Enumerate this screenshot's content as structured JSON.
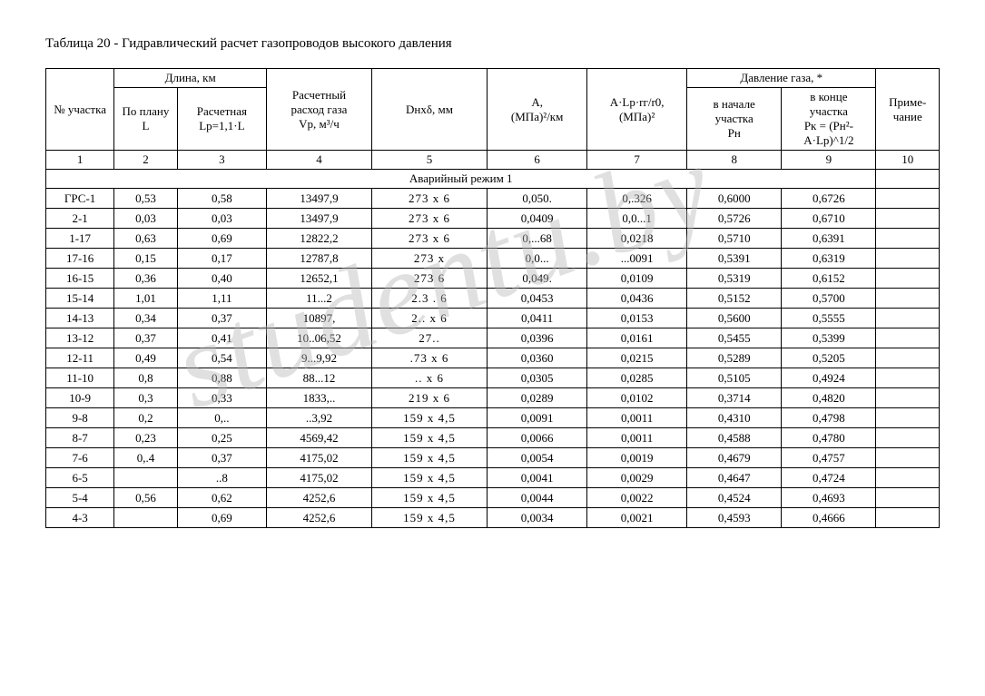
{
  "title": "Таблица 20 - Гидравлический расчет газопроводов высокого давления",
  "watermark_text": "studentu.by",
  "headers": {
    "col1": "№ участка",
    "length_group": "Длина, км",
    "col2": "По плану L",
    "col3_line1": "Расчетная",
    "col3_line2": "Lр=1,1·L",
    "col4_line1": "Расчетный",
    "col4_line2": "расход газа",
    "col4_line3": "Vр, м³/ч",
    "col5": "Dнхδ, мм",
    "col6_line1": "A,",
    "col6_line2": "(МПа)²/км",
    "col7_line1": "A·Lр·rг/r0,",
    "col7_line2": "(МПа)²",
    "pressure_group": "Давление газа, *",
    "col8_line1": "в начале",
    "col8_line2": "участка",
    "col8_line3": "Рн",
    "col9_line1": "в конце",
    "col9_line2": "участка",
    "col9_line3": "Рк = (Рн²-",
    "col9_line4": "A·Lр)^1/2",
    "col10": "Приме-чание"
  },
  "col_numbers": [
    "1",
    "2",
    "3",
    "4",
    "5",
    "6",
    "7",
    "8",
    "9",
    "10"
  ],
  "section_label": "Аварийный режим 1",
  "rows": [
    {
      "c1": "ГРС-1",
      "c2": "0,53",
      "c3": "0,58",
      "c4": "13497,9",
      "c5": "273   х   6",
      "c6": "0,050.",
      "c7": "0,.326",
      "c8": "0,6000",
      "c9": "0,6726",
      "c10": ""
    },
    {
      "c1": "2-1",
      "c2": "0,03",
      "c3": "0,03",
      "c4": "13497,9",
      "c5": "273   х   6",
      "c6": "0,0409",
      "c7": "0,0...1",
      "c8": "0,5726",
      "c9": "0,6710",
      "c10": ""
    },
    {
      "c1": "1-17",
      "c2": "0,63",
      "c3": "0,69",
      "c4": "12822,2",
      "c5": "273   х   6",
      "c6": "0,...68",
      "c7": "0,0218",
      "c8": "0,5710",
      "c9": "0,6391",
      "c10": ""
    },
    {
      "c1": "17-16",
      "c2": "0,15",
      "c3": "0,17",
      "c4": "12787,8",
      "c5": "273   х",
      "c6": "0,0...",
      "c7": "...0091",
      "c8": "0,5391",
      "c9": "0,6319",
      "c10": ""
    },
    {
      "c1": "16-15",
      "c2": "0,36",
      "c3": "0,40",
      "c4": "12652,1",
      "c5": "273       6",
      "c6": "0,049.",
      "c7": "0,0109",
      "c8": "0,5319",
      "c9": "0,6152",
      "c10": ""
    },
    {
      "c1": "15-14",
      "c2": "1,01",
      "c3": "1,11",
      "c4": "11...2",
      "c5": "2.3   .   6",
      "c6": "0,0453",
      "c7": "0,0436",
      "c8": "0,5152",
      "c9": "0,5700",
      "c10": ""
    },
    {
      "c1": "14-13",
      "c2": "0,34",
      "c3": "0,37",
      "c4": "10897,",
      "c5": "2..   х   6",
      "c6": "0,0411",
      "c7": "0,0153",
      "c8": "0,5600",
      "c9": "0,5555",
      "c10": ""
    },
    {
      "c1": "13-12",
      "c2": "0,37",
      "c3": "0,41",
      "c4": "10..06,52",
      "c5": "27..",
      "c6": "0,0396",
      "c7": "0,0161",
      "c8": "0,5455",
      "c9": "0,5399",
      "c10": ""
    },
    {
      "c1": "12-11",
      "c2": "0,49",
      "c3": "0,54",
      "c4": "9...9,92",
      "c5": ".73   х   6",
      "c6": "0,0360",
      "c7": "0,0215",
      "c8": "0,5289",
      "c9": "0,5205",
      "c10": ""
    },
    {
      "c1": "11-10",
      "c2": "0,8",
      "c3": "0,88",
      "c4": "88...12",
      "c5": "..   х   6",
      "c6": "0,0305",
      "c7": "0,0285",
      "c8": "0,5105",
      "c9": "0,4924",
      "c10": ""
    },
    {
      "c1": "10-9",
      "c2": "0,3",
      "c3": "0,33",
      "c4": "1833,..",
      "c5": "219   х   6",
      "c6": "0,0289",
      "c7": "0,0102",
      "c8": "0,3714",
      "c9": "0,4820",
      "c10": ""
    },
    {
      "c1": "9-8",
      "c2": "0,2",
      "c3": "0,..",
      "c4": "..3,92",
      "c5": "159   х   4,5",
      "c6": "0,0091",
      "c7": "0,0011",
      "c8": "0,4310",
      "c9": "0,4798",
      "c10": ""
    },
    {
      "c1": "8-7",
      "c2": "0,23",
      "c3": "0,25",
      "c4": "4569,42",
      "c5": "159   х   4,5",
      "c6": "0,0066",
      "c7": "0,0011",
      "c8": "0,4588",
      "c9": "0,4780",
      "c10": ""
    },
    {
      "c1": "7-6",
      "c2": "0,.4",
      "c3": "0,37",
      "c4": "4175,02",
      "c5": "159   х   4,5",
      "c6": "0,0054",
      "c7": "0,0019",
      "c8": "0,4679",
      "c9": "0,4757",
      "c10": ""
    },
    {
      "c1": "6-5",
      "c2": "",
      "c3": "..8",
      "c4": "4175,02",
      "c5": "159   х   4,5",
      "c6": "0,0041",
      "c7": "0,0029",
      "c8": "0,4647",
      "c9": "0,4724",
      "c10": ""
    },
    {
      "c1": "5-4",
      "c2": "0,56",
      "c3": "0,62",
      "c4": "4252,6",
      "c5": "159   х   4,5",
      "c6": "0,0044",
      "c7": "0,0022",
      "c8": "0,4524",
      "c9": "0,4693",
      "c10": ""
    },
    {
      "c1": "4-3",
      "c2": "",
      "c3": "0,69",
      "c4": "4252,6",
      "c5": "159   х   4,5",
      "c6": "0,0034",
      "c7": "0,0021",
      "c8": "0,4593",
      "c9": "0,4666",
      "c10": ""
    }
  ],
  "colors": {
    "text": "#000000",
    "background": "#ffffff",
    "border": "#000000",
    "watermark": "rgba(180,180,180,0.42)"
  },
  "typography": {
    "font_family": "Times New Roman",
    "title_fontsize": 15,
    "table_fontsize": 13
  }
}
